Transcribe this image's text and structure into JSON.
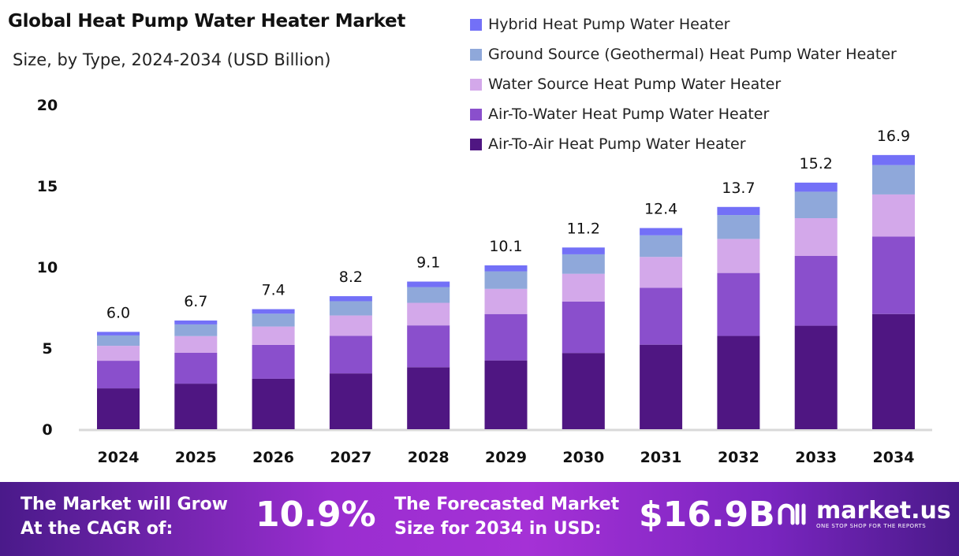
{
  "chart_data": {
    "type": "bar",
    "stacked": true,
    "title": "Global Heat Pump Water Heater Market",
    "subtitle": "Size, by Type, 2024-2034 (USD Billion)",
    "xlabel": "",
    "ylabel": "",
    "ylim": [
      0,
      20
    ],
    "yticks": [
      0,
      5,
      10,
      15,
      20
    ],
    "grid": false,
    "legend_position": "top-right",
    "categories": [
      "2024",
      "2025",
      "2026",
      "2027",
      "2028",
      "2029",
      "2030",
      "2031",
      "2032",
      "2033",
      "2034"
    ],
    "totals": [
      "6.0",
      "6.7",
      "7.4",
      "8.2",
      "9.1",
      "10.1",
      "11.2",
      "12.4",
      "13.7",
      "15.2",
      "16.9"
    ],
    "series": [
      {
        "name": "Air-To-Air Heat Pump Water Heater",
        "color": "#4f1682",
        "values": [
          2.52,
          2.81,
          3.11,
          3.44,
          3.82,
          4.24,
          4.7,
          5.21,
          5.75,
          6.38,
          7.1
        ]
      },
      {
        "name": "Air-To-Water Heat Pump Water Heater",
        "color": "#8a4fcc",
        "values": [
          1.7,
          1.9,
          2.09,
          2.32,
          2.58,
          2.86,
          3.17,
          3.51,
          3.88,
          4.3,
          4.78
        ]
      },
      {
        "name": "Water Source Heat Pump Water Heater",
        "color": "#d3a8ea",
        "values": [
          0.92,
          1.03,
          1.13,
          1.25,
          1.39,
          1.55,
          1.71,
          1.9,
          2.1,
          2.33,
          2.59
        ]
      },
      {
        "name": "Ground Source (Geothermal) Heat Pump Water Heater",
        "color": "#8fa8da",
        "values": [
          0.64,
          0.72,
          0.79,
          0.88,
          0.97,
          1.08,
          1.2,
          1.33,
          1.47,
          1.63,
          1.81
        ]
      },
      {
        "name": "Hybrid Heat Pump Water Heater",
        "color": "#7370f7",
        "values": [
          0.22,
          0.24,
          0.28,
          0.31,
          0.34,
          0.37,
          0.42,
          0.45,
          0.5,
          0.56,
          0.62
        ]
      }
    ]
  },
  "footer": {
    "cagr_label_1": "The Market will Grow",
    "cagr_label_2": "At the CAGR of:",
    "cagr_value": "10.9%",
    "forecast_label_1": "The Forecasted Market",
    "forecast_label_2": "Size for 2034 in USD:",
    "forecast_value": "$16.9B",
    "brand": "market.us",
    "tagline": "ONE STOP SHOP FOR THE REPORTS"
  }
}
